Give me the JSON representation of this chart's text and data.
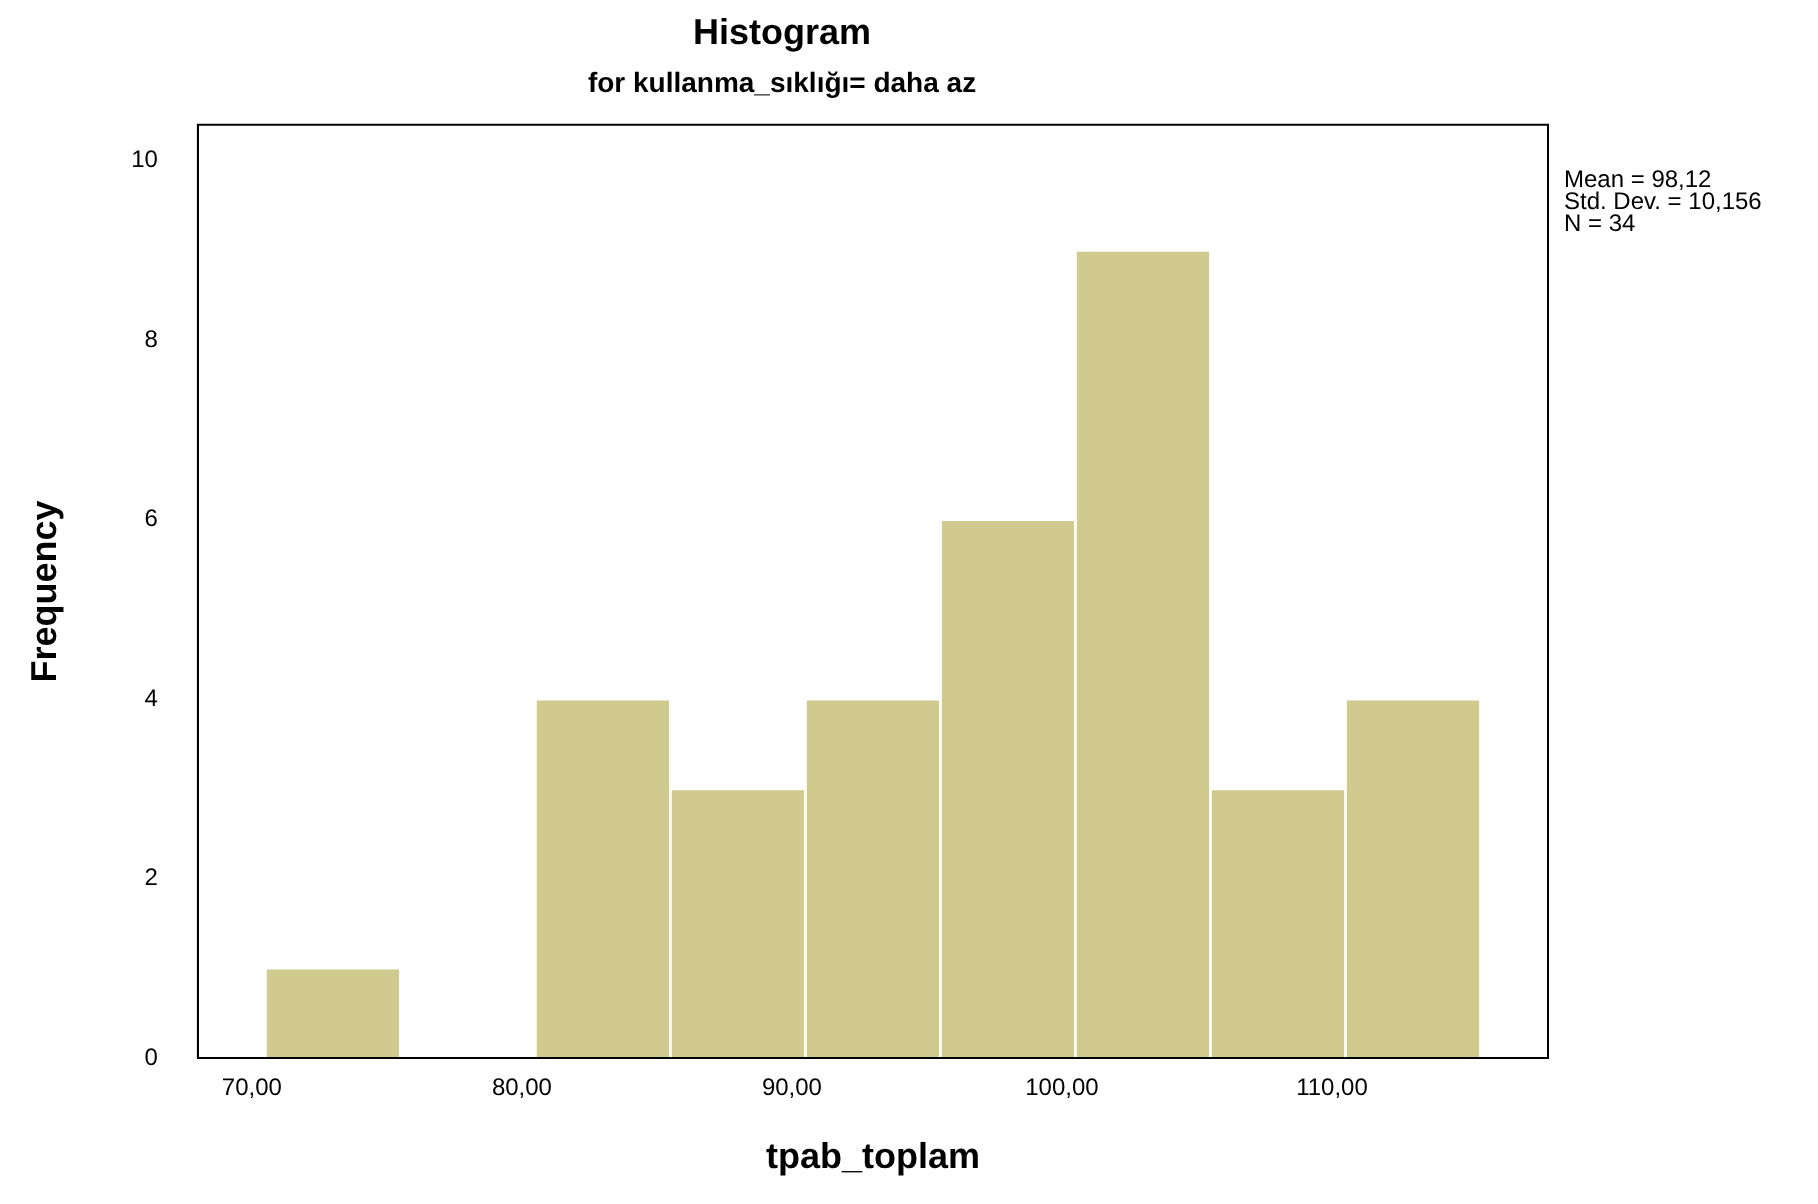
{
  "chart_data": {
    "type": "histogram",
    "title": "Histogram",
    "subtitle": "for kullanma_sıklığı= daha az",
    "xlabel": "tpab_toplam",
    "ylabel": "Frequency",
    "bins": [
      70.5,
      75.5,
      80.5,
      85.5,
      90.5,
      95.5,
      100.5,
      105.5,
      110.5,
      115.5
    ],
    "values": [
      1,
      0,
      4,
      3,
      4,
      6,
      9,
      3,
      4
    ],
    "color": "#d0ca8e",
    "xlim": [
      68,
      118
    ],
    "xticks": [
      {
        "value": 70,
        "label": "70,00"
      },
      {
        "value": 80,
        "label": "80,00"
      },
      {
        "value": 90,
        "label": "90,00"
      },
      {
        "value": 100,
        "label": "100,00"
      },
      {
        "value": 110,
        "label": "110,00"
      }
    ],
    "ylim": [
      0,
      10.4
    ],
    "yticks": [
      0,
      2,
      4,
      6,
      8,
      10
    ],
    "annotations": [
      "Mean = 98,12",
      "Std. Dev. = 10,156",
      "N = 34"
    ],
    "grid": false,
    "legend": false
  }
}
